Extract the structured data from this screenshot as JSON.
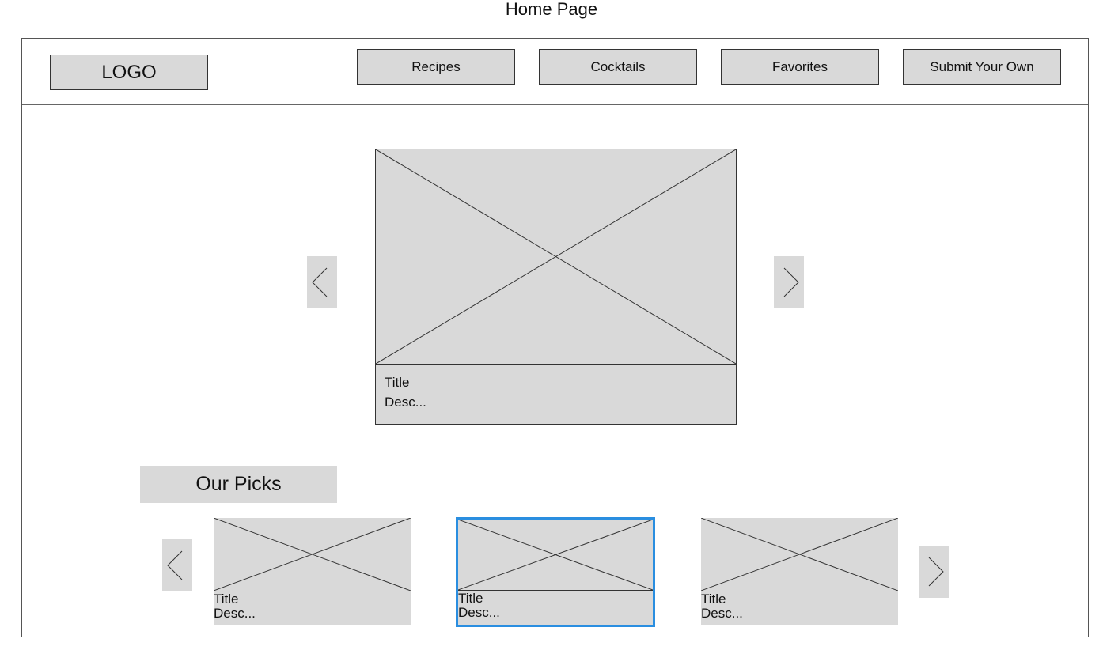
{
  "page": {
    "title": "Home Page"
  },
  "header": {
    "logo_label": "LOGO",
    "nav": [
      {
        "label": "Recipes"
      },
      {
        "label": "Cocktails"
      },
      {
        "label": "Favorites"
      },
      {
        "label": "Submit Your Own"
      }
    ]
  },
  "hero": {
    "title": "Title",
    "description": "Desc..."
  },
  "picks": {
    "heading": "Our Picks",
    "cards": [
      {
        "title": "Title",
        "description": "Desc...",
        "selected": false
      },
      {
        "title": "Title",
        "description": "Desc...",
        "selected": true
      },
      {
        "title": "Title",
        "description": "Desc...",
        "selected": false
      }
    ]
  },
  "icons": {
    "prev": "chevron-left-icon",
    "next": "chevron-right-icon",
    "image_placeholder": "image-placeholder-icon"
  },
  "colors": {
    "placeholder": "#d9d9d9",
    "selected_border": "#2a8ee0",
    "outline": "#333333"
  }
}
